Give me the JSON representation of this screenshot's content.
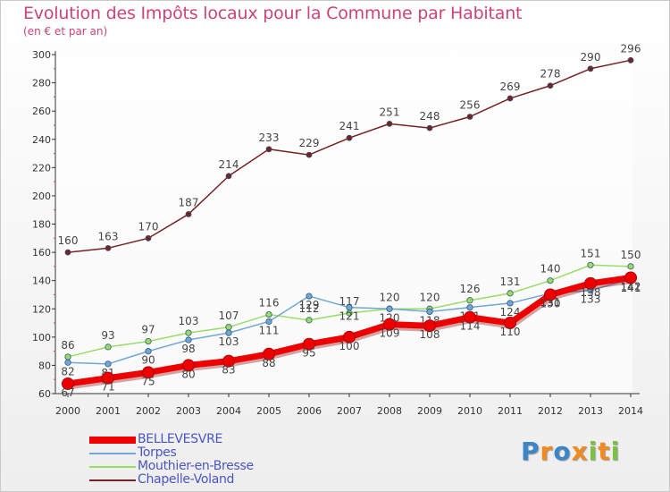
{
  "chart_data": {
    "type": "line",
    "title": "Evolution des Impôts locaux pour la Commune par Habitant",
    "subtitle": "(en € et par an)",
    "x": [
      "2000",
      "2001",
      "2002",
      "2003",
      "2004",
      "2005",
      "2006",
      "2007",
      "2008",
      "2009",
      "2010",
      "2011",
      "2012",
      "2013",
      "2014"
    ],
    "ylim": [
      60,
      300
    ],
    "yticks": [
      "60",
      "80",
      "100",
      "120",
      "140",
      "160",
      "180",
      "200",
      "220",
      "240",
      "260",
      "280",
      "300"
    ],
    "grid": false,
    "legend_position": "bottom-left",
    "series": [
      {
        "name": "BELLEVESVRE",
        "color": "#ee0000",
        "values": [
          67,
          71,
          75,
          80,
          83,
          88,
          95,
          100,
          109,
          108,
          114,
          110,
          130,
          138,
          142
        ]
      },
      {
        "name": "Torpes",
        "color": "#6fa8d6",
        "values": [
          82,
          81,
          90,
          98,
          103,
          111,
          129,
          121,
          120,
          118,
          121,
          124,
          131,
          133,
          141
        ]
      },
      {
        "name": "Mouthier-en-Bresse",
        "color": "#99dd66",
        "values": [
          86,
          93,
          97,
          103,
          107,
          116,
          112,
          117,
          120,
          120,
          126,
          131,
          140,
          151,
          150
        ]
      },
      {
        "name": "Chapelle-Voland",
        "color": "#772222",
        "values": [
          160,
          163,
          170,
          187,
          214,
          233,
          229,
          241,
          251,
          248,
          256,
          269,
          278,
          290,
          296
        ]
      }
    ]
  },
  "logo": {
    "letters": [
      {
        "ch": "P",
        "color": "#3a86c8"
      },
      {
        "ch": "r",
        "color": "#f28a1e"
      },
      {
        "ch": "o",
        "color": "#3a86c8"
      },
      {
        "ch": "x",
        "color": "#f28a1e"
      },
      {
        "ch": "i",
        "color": "#7cc242"
      },
      {
        "ch": "t",
        "color": "#f28a1e"
      },
      {
        "ch": "i",
        "color": "#7cc242"
      }
    ]
  }
}
